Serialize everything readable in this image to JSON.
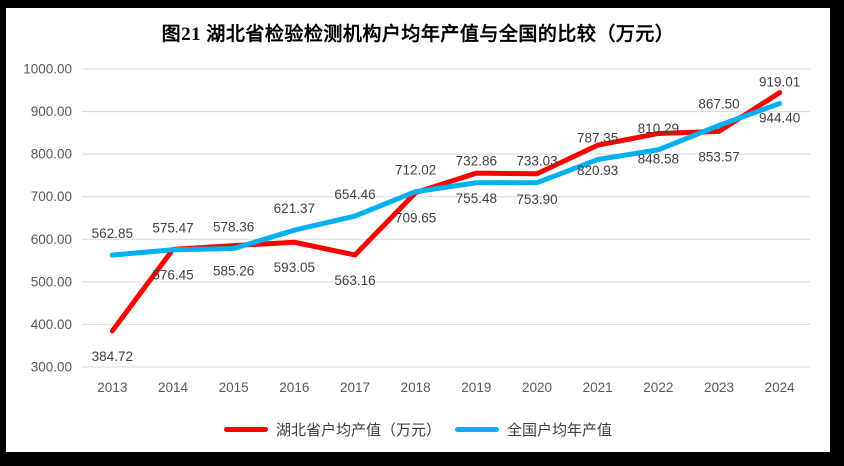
{
  "chart_data": {
    "type": "line",
    "title": "图21 湖北省检验检测机构户均年产值与全国的比较（万元）",
    "categories": [
      "2013",
      "2014",
      "2015",
      "2016",
      "2017",
      "2018",
      "2019",
      "2020",
      "2021",
      "2022",
      "2023",
      "2024"
    ],
    "series": [
      {
        "name": "湖北省户均产值（万元）",
        "color": "#FF0000",
        "label_position": "below",
        "values": [
          384.72,
          576.45,
          585.26,
          593.05,
          563.16,
          709.65,
          755.48,
          753.9,
          820.93,
          848.58,
          853.57,
          944.4
        ]
      },
      {
        "name": "全国户均年产值",
        "color": "#00B0F0",
        "label_position": "above",
        "values": [
          562.85,
          575.47,
          578.36,
          621.37,
          654.46,
          712.02,
          732.86,
          733.03,
          787.35,
          810.29,
          867.5,
          919.01
        ]
      }
    ],
    "xlabel": "",
    "ylabel": "",
    "ylim": [
      300,
      1000
    ],
    "ytick_labels": [
      "300.00",
      "400.00",
      "500.00",
      "600.00",
      "700.00",
      "800.00",
      "900.00",
      "1000.00"
    ],
    "grid": true,
    "legend_position": "bottom",
    "colors": {
      "gridline": "#D9D9D9",
      "tick_label": "#595959",
      "data_label": "#404040",
      "title": "#000000",
      "background": "#FFFFFF",
      "frame": "#000000"
    }
  }
}
